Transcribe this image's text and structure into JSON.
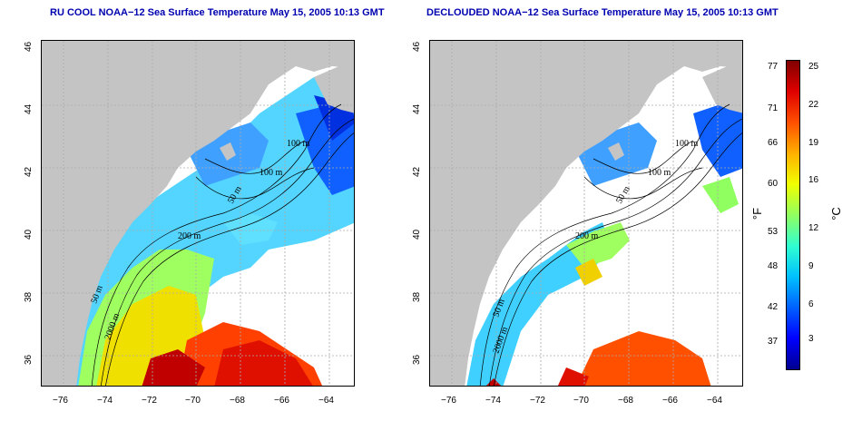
{
  "panels": [
    {
      "id": "left",
      "title": "RU COOL NOAA−12 Sea Surface Temperature May 15, 2005 10:13 GMT"
    },
    {
      "id": "right",
      "title": "DECLOUDED NOAA−12 Sea Surface Temperature May 15, 2005 10:13 GMT"
    }
  ],
  "axes": {
    "lon_ticks": [
      "−76",
      "−74",
      "−72",
      "−70",
      "−68",
      "−66",
      "−64"
    ],
    "lat_ticks": [
      "36",
      "38",
      "40",
      "42",
      "44",
      "46"
    ],
    "lon_range": [
      -77.2,
      -62.9
    ],
    "lat_range": [
      35.0,
      46.1
    ]
  },
  "contour_labels": [
    "100 m",
    "100 m",
    "50 m",
    "200 m",
    "50 m",
    "2000 m"
  ],
  "colorbar": {
    "fahrenheit_ticks": [
      "77",
      "71",
      "66",
      "60",
      "53",
      "48",
      "42",
      "37"
    ],
    "celsius_ticks": [
      "25",
      "22",
      "19",
      "16",
      "12",
      "9",
      "6",
      "3"
    ],
    "f_unit": "°F",
    "c_unit": "°C",
    "colors": [
      "#000090",
      "#0000ff",
      "#0060ff",
      "#00c0ff",
      "#30ffd0",
      "#90ff60",
      "#f0ff00",
      "#ffb000",
      "#ff5000",
      "#e00000",
      "#800000"
    ]
  },
  "colors": {
    "land": "#c4c4c4",
    "title": "#0000b0",
    "grid": "#aaaaaa"
  }
}
